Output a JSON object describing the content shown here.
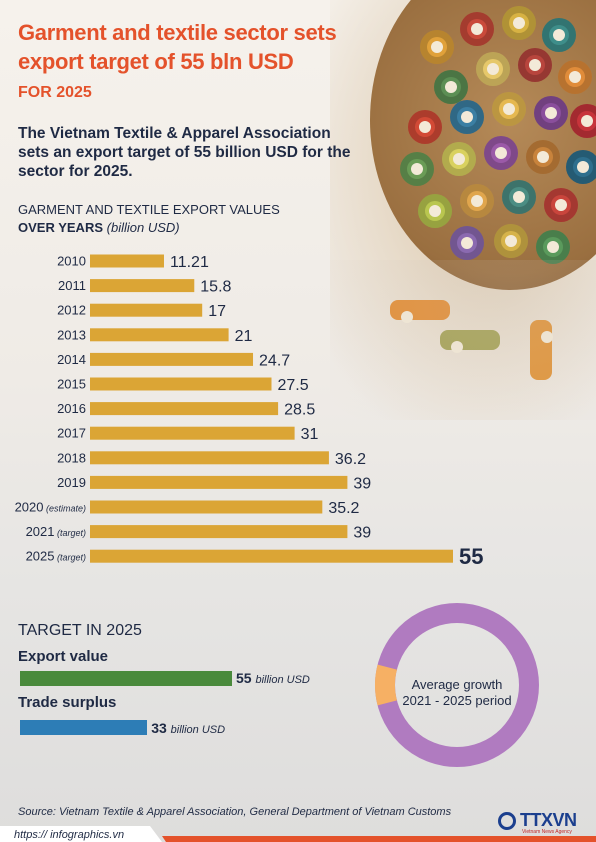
{
  "header": {
    "title": "Garment and textile sector sets export target of 55 bln USD",
    "subtitle": "FOR 2025",
    "intro": "The Vietnam Textile & Apparel Association sets an export target of 55 billion USD for the sector for 2025."
  },
  "chart_heading": {
    "line1": "GARMENT AND TEXTILE EXPORT VALUES",
    "line2_bold": "OVER YEARS",
    "line2_unit": "(billion USD)"
  },
  "chart_data": {
    "type": "bar",
    "orientation": "horizontal",
    "title": "GARMENT AND TEXTILE EXPORT VALUES OVER YEARS (billion USD)",
    "categories": [
      {
        "year": "2010",
        "note": ""
      },
      {
        "year": "2011",
        "note": ""
      },
      {
        "year": "2012",
        "note": ""
      },
      {
        "year": "2013",
        "note": ""
      },
      {
        "year": "2014",
        "note": ""
      },
      {
        "year": "2015",
        "note": ""
      },
      {
        "year": "2016",
        "note": ""
      },
      {
        "year": "2017",
        "note": ""
      },
      {
        "year": "2018",
        "note": ""
      },
      {
        "year": "2019",
        "note": ""
      },
      {
        "year": "2020",
        "note": "(estimate)"
      },
      {
        "year": "2021",
        "note": "(target)"
      },
      {
        "year": "2025",
        "note": "(target)"
      }
    ],
    "values": [
      11.21,
      15.8,
      17,
      21,
      24.7,
      27.5,
      28.5,
      31,
      36.2,
      39,
      35.2,
      39,
      55
    ],
    "value_labels": [
      "11.21",
      "15.8",
      "17",
      "21",
      "24.7",
      "27.5",
      "28.5",
      "31",
      "36.2",
      "39",
      "35.2",
      "39",
      "55"
    ],
    "bar_color": "#dba535",
    "xlim": [
      0,
      55
    ],
    "grid": false,
    "legend": "none"
  },
  "targets": {
    "heading": "TARGET IN 2025",
    "items": [
      {
        "label": "Export value",
        "value": "55",
        "unit": "billion USD",
        "amount": 55,
        "color": "#4a8a3c"
      },
      {
        "label": "Trade surplus",
        "value": "33",
        "unit": "billion USD",
        "amount": 33,
        "color": "#2d7db6"
      }
    ]
  },
  "donut": {
    "text_line1": "Average growth",
    "text_line2": "2021 - 2025 period",
    "main_color": "#b07bc0",
    "accent_color": "#f6b064",
    "accent_fraction": 0.08
  },
  "footer": {
    "source": "Source: Vietnam Textile & Apparel Association, General Department of Vietnam Customs",
    "url": "https:// infographics.vn",
    "logo_text": "TTXVN",
    "logo_sub": "Vietnam News Agency"
  },
  "colors": {
    "title": "#e4522b",
    "text": "#1f2a44",
    "footer_band": "#e4522b"
  }
}
